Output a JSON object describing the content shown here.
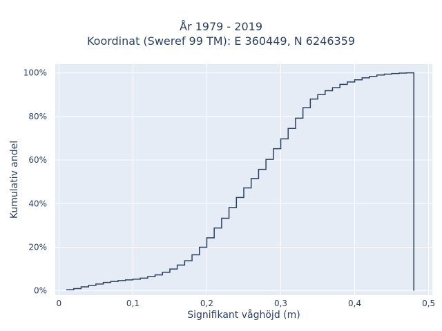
{
  "chart_data": {
    "type": "line",
    "line_shape": "step",
    "title_lines": [
      "År 1979 - 2019",
      "Koordinat (Sweref 99 TM): E 360449, N 6246359"
    ],
    "xlabel": "Signifikant våghöjd (m)",
    "ylabel": "Kumulativ andel",
    "xlim": [
      -0.005,
      0.505
    ],
    "ylim": [
      -0.02,
      1.04
    ],
    "x_ticks": [
      0,
      0.1,
      0.2,
      0.3,
      0.4,
      0.5
    ],
    "x_tick_labels": [
      "0",
      "0,1",
      "0,2",
      "0,3",
      "0,4",
      "0,5"
    ],
    "y_ticks": [
      0,
      0.2,
      0.4,
      0.6,
      0.8,
      1.0
    ],
    "y_tick_labels": [
      "0%",
      "20%",
      "40%",
      "60%",
      "80%",
      "100%"
    ],
    "grid": true,
    "colors": {
      "plot_bg": "#e5ecf6",
      "grid": "#ffffff",
      "line": "#2a3f5f",
      "text": "#2a3f5f"
    },
    "series": [
      {
        "x": [
          0.01,
          0.02,
          0.03,
          0.04,
          0.05,
          0.06,
          0.07,
          0.08,
          0.09,
          0.1,
          0.11,
          0.12,
          0.13,
          0.14,
          0.15,
          0.16,
          0.17,
          0.18,
          0.19,
          0.2,
          0.21,
          0.22,
          0.23,
          0.24,
          0.25,
          0.26,
          0.27,
          0.28,
          0.29,
          0.3,
          0.31,
          0.32,
          0.33,
          0.34,
          0.35,
          0.36,
          0.37,
          0.38,
          0.39,
          0.4,
          0.41,
          0.42,
          0.43,
          0.44,
          0.45,
          0.46,
          0.47,
          0.48
        ],
        "y": [
          0.005,
          0.01,
          0.018,
          0.025,
          0.031,
          0.038,
          0.043,
          0.047,
          0.05,
          0.053,
          0.058,
          0.065,
          0.073,
          0.085,
          0.1,
          0.118,
          0.138,
          0.165,
          0.2,
          0.243,
          0.288,
          0.333,
          0.382,
          0.428,
          0.472,
          0.515,
          0.557,
          0.603,
          0.652,
          0.697,
          0.745,
          0.792,
          0.84,
          0.88,
          0.9,
          0.918,
          0.932,
          0.947,
          0.958,
          0.968,
          0.977,
          0.984,
          0.99,
          0.994,
          0.997,
          0.999,
          1.0,
          0.0
        ]
      }
    ]
  }
}
